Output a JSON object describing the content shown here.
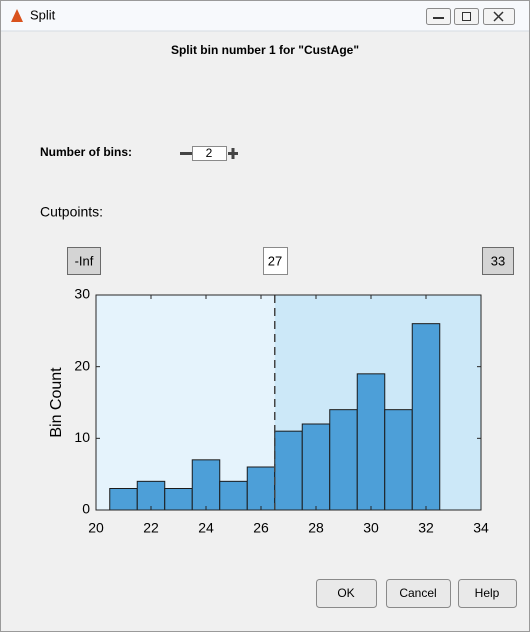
{
  "window": {
    "title": "Split"
  },
  "header": "Split bin number 1 for \"CustAge\"",
  "bins_control": {
    "label": "Number of bins:",
    "value": 2
  },
  "cutpoints": {
    "label": "Cutpoints:",
    "values": [
      "-Inf",
      "27",
      "33"
    ]
  },
  "chart_data": {
    "type": "histogram",
    "ylabel": "Bin Count",
    "bins": [
      20.5,
      21.5,
      22.5,
      23.5,
      24.5,
      25.5,
      26.5,
      27.5,
      28.5,
      29.5,
      30.5,
      31.5,
      32.5
    ],
    "values": [
      3,
      4,
      3,
      7,
      4,
      6,
      11,
      12,
      14,
      19,
      14,
      26
    ],
    "color": "#4d9fd8",
    "xlim": [
      20,
      34
    ],
    "xticks": [
      20,
      22,
      24,
      26,
      28,
      30,
      32,
      34
    ],
    "ylim": [
      0,
      30
    ],
    "yticks": [
      0,
      10,
      20,
      30
    ],
    "split": 26.5
  },
  "buttons": [
    "OK",
    "Cancel",
    "Help"
  ]
}
